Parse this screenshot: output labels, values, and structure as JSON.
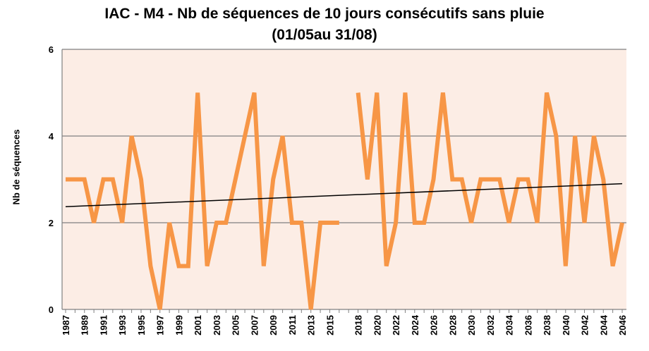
{
  "chart_data": {
    "type": "line",
    "title": "IAC - M4 - Nb de séquences de 10 jours consécutifs sans pluie",
    "subtitle": "(01/05au 31/08)",
    "xlabel": "",
    "ylabel": "Nb de séquences",
    "ylim": [
      0,
      6
    ],
    "yticks": [
      0,
      2,
      4,
      6
    ],
    "grid": true,
    "legend": "none",
    "x": [
      1987,
      1988,
      1989,
      1990,
      1991,
      1992,
      1993,
      1994,
      1995,
      1996,
      1997,
      1998,
      1999,
      2000,
      2001,
      2002,
      2003,
      2004,
      2005,
      2006,
      2007,
      2008,
      2009,
      2010,
      2011,
      2012,
      2013,
      2014,
      2015,
      2016,
      2017,
      2018,
      2019,
      2020,
      2021,
      2022,
      2023,
      2024,
      2025,
      2026,
      2027,
      2028,
      2029,
      2030,
      2031,
      2032,
      2033,
      2034,
      2035,
      2036,
      2037,
      2038,
      2039,
      2040,
      2041,
      2042,
      2043,
      2044,
      2045,
      2046
    ],
    "xtick_labels": [
      "1987",
      "1989",
      "1991",
      "1993",
      "1995",
      "1997",
      "1999",
      "2001",
      "2003",
      "2005",
      "2007",
      "2009",
      "2011",
      "2013",
      "2015",
      "2018",
      "2020",
      "2022",
      "2024",
      "2026",
      "2028",
      "2030",
      "2032",
      "2034",
      "2036",
      "2038",
      "2040",
      "2042",
      "2044",
      "2046"
    ],
    "series": [
      {
        "values": [
          3,
          3,
          3,
          2,
          3,
          3,
          2,
          4,
          3,
          1,
          0,
          2,
          1,
          1,
          5,
          1,
          2,
          2,
          3,
          4,
          5,
          1,
          3,
          4,
          2,
          2,
          0,
          2,
          2,
          2,
          null,
          5,
          3,
          5,
          1,
          2,
          5,
          2,
          2,
          3,
          5,
          3,
          3,
          2,
          3,
          3,
          3,
          2,
          3,
          3,
          2,
          5,
          4,
          1,
          4,
          2,
          4,
          3,
          1,
          2
        ]
      }
    ],
    "trendline": {
      "x": [
        1987,
        2046
      ],
      "y": [
        2.37,
        2.9
      ]
    },
    "colors": {
      "series": "#F79646",
      "plot_background": "#FCEDE5",
      "trendline": "#000000",
      "gridline": "#808080"
    }
  }
}
